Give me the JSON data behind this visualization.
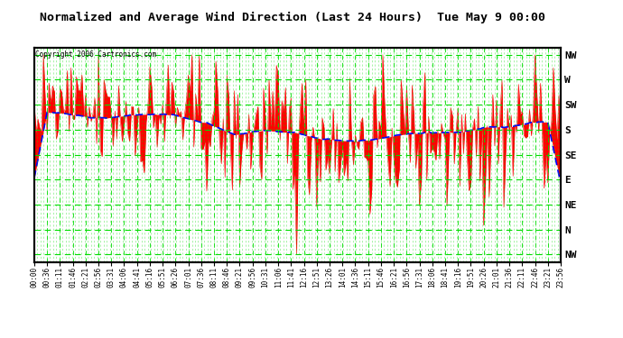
{
  "title": "Normalized and Average Wind Direction (Last 24 Hours)  Tue May 9 00:00",
  "copyright": "Copyright 2006 Cartronics.com",
  "fig_bg_color": "#ffffff",
  "plot_bg_color": "#ffffff",
  "grid_color": "#00dd00",
  "red_color": "#ff0000",
  "blue_color": "#0000ff",
  "ytick_labels": [
    "NW",
    "N",
    "NE",
    "E",
    "SE",
    "S",
    "SW",
    "W",
    "NW"
  ],
  "ytick_values": [
    0,
    1,
    2,
    3,
    4,
    5,
    6,
    7,
    8
  ],
  "ylim": [
    -0.3,
    8.3
  ],
  "num_points": 288,
  "seed": 42
}
